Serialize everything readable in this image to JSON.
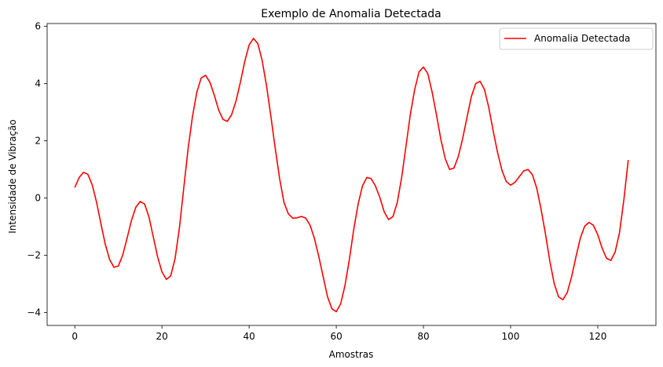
{
  "chart_data": {
    "type": "line",
    "title": "Exemplo de Anomalia Detectada",
    "xlabel": "Amostras",
    "ylabel": "Intensidade de Vibração",
    "xlim": [
      -6.35,
      133.35
    ],
    "ylim": [
      -4.45,
      6.1
    ],
    "xticks": [
      0,
      20,
      40,
      60,
      80,
      100,
      120
    ],
    "yticks": [
      -4,
      -2,
      0,
      2,
      4,
      6
    ],
    "xtick_labels": [
      "0",
      "20",
      "40",
      "60",
      "80",
      "100",
      "120"
    ],
    "ytick_labels": [
      "−4",
      "−2",
      "0",
      "2",
      "4",
      "6"
    ],
    "grid": false,
    "legend_position": "top-right",
    "series": [
      {
        "name": "Anomalia Detectada",
        "color": "#ff0000",
        "x": [
          0,
          1,
          2,
          3,
          4,
          5,
          6,
          7,
          8,
          9,
          10,
          11,
          12,
          13,
          14,
          15,
          16,
          17,
          18,
          19,
          20,
          21,
          22,
          23,
          24,
          25,
          26,
          27,
          28,
          29,
          30,
          31,
          32,
          33,
          34,
          35,
          36,
          37,
          38,
          39,
          40,
          41,
          42,
          43,
          44,
          45,
          46,
          47,
          48,
          49,
          50,
          51,
          52,
          53,
          54,
          55,
          56,
          57,
          58,
          59,
          60,
          61,
          62,
          63,
          64,
          65,
          66,
          67,
          68,
          69,
          70,
          71,
          72,
          73,
          74,
          75,
          76,
          77,
          78,
          79,
          80,
          81,
          82,
          83,
          84,
          85,
          86,
          87,
          88,
          89,
          90,
          91,
          92,
          93,
          94,
          95,
          96,
          97,
          98,
          99,
          100,
          101,
          102,
          103,
          104,
          105,
          106,
          107,
          108,
          109,
          110,
          111,
          112,
          113,
          114,
          115,
          116,
          117,
          118,
          119,
          120,
          121,
          122,
          123,
          124,
          125,
          126,
          127
        ],
        "y": [
          0.37,
          0.72,
          0.9,
          0.83,
          0.46,
          -0.15,
          -0.9,
          -1.62,
          -2.15,
          -2.42,
          -2.37,
          -1.99,
          -1.4,
          -0.78,
          -0.32,
          -0.12,
          -0.2,
          -0.65,
          -1.35,
          -2.05,
          -2.58,
          -2.84,
          -2.72,
          -2.12,
          -1.05,
          0.35,
          1.73,
          2.85,
          3.7,
          4.2,
          4.29,
          4.05,
          3.6,
          3.08,
          2.75,
          2.68,
          2.92,
          3.4,
          4.05,
          4.78,
          5.35,
          5.58,
          5.4,
          4.8,
          3.92,
          2.85,
          1.73,
          0.68,
          -0.15,
          -0.55,
          -0.7,
          -0.69,
          -0.64,
          -0.7,
          -0.95,
          -1.42,
          -2.05,
          -2.75,
          -3.45,
          -3.87,
          -3.97,
          -3.7,
          -3.05,
          -2.15,
          -1.1,
          -0.22,
          0.42,
          0.72,
          0.68,
          0.42,
          0.02,
          -0.48,
          -0.75,
          -0.65,
          -0.15,
          0.72,
          1.82,
          2.93,
          3.8,
          4.41,
          4.58,
          4.35,
          3.7,
          2.9,
          2.05,
          1.38,
          1.0,
          1.05,
          1.45,
          2.08,
          2.82,
          3.55,
          4.0,
          4.08,
          3.8,
          3.16,
          2.35,
          1.6,
          0.98,
          0.58,
          0.45,
          0.55,
          0.75,
          0.95,
          1.0,
          0.82,
          0.35,
          -0.4,
          -1.25,
          -2.2,
          -2.98,
          -3.45,
          -3.55,
          -3.3,
          -2.75,
          -2.05,
          -1.4,
          -0.98,
          -0.85,
          -0.95,
          -1.28,
          -1.75,
          -2.1,
          -2.18,
          -1.88,
          -1.2,
          -0.05,
          1.33
        ]
      }
    ]
  }
}
